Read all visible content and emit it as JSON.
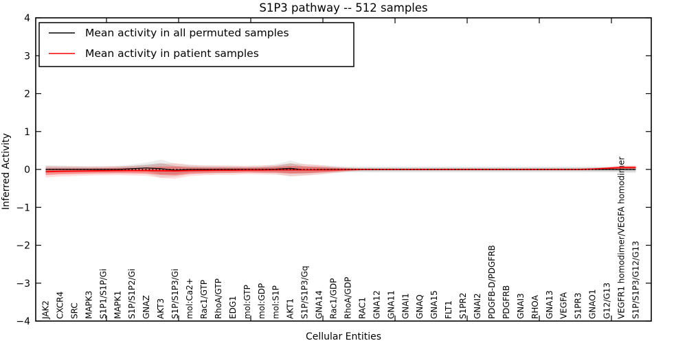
{
  "title": "S1P3 pathway -- 512 samples",
  "legend": {
    "position": "upper left",
    "items": [
      {
        "label": "Mean activity in all permuted samples",
        "color": "#000000"
      },
      {
        "label": "Mean activity in patient samples",
        "color": "#ff0000"
      }
    ]
  },
  "axes": {
    "xlabel": "Cellular Entities",
    "ylabel": "Inferred Activity",
    "ytick_labels": [
      "4",
      "3",
      "2",
      "1",
      "0",
      "−1",
      "−2",
      "−3",
      "−4"
    ]
  },
  "chart_data": {
    "type": "line",
    "title": "S1P3 pathway -- 512 samples",
    "xlabel": "Cellular Entities",
    "ylabel": "Inferred Activity",
    "ylim": [
      -4,
      4
    ],
    "yticks": [
      -4,
      -3,
      -2,
      -1,
      0,
      1,
      2,
      3,
      4
    ],
    "grid": false,
    "legend_position": "upper left",
    "background_color": "#ffffff",
    "frame_color": "#000000",
    "categories": [
      "JAK2",
      "CXCR4",
      "SRC",
      "MAPK3",
      "S1P1/S1P/Gi",
      "MAPK1",
      "S1P/S1P2/Gi",
      "GNAZ",
      "AKT3",
      "S1P/S1P3/Gi",
      "mol:Ca2+",
      "Rac1/GTP",
      "RhoA/GTP",
      "EDG1",
      "mol:GTP",
      "mol:GDP",
      "mol:S1P",
      "AKT1",
      "S1P/S1P3/Gq",
      "GNA14",
      "Rac1/GDP",
      "RhoA/GDP",
      "RAC1",
      "GNA12",
      "GNA11",
      "GNAI1",
      "GNAQ",
      "GNA15",
      "FLT1",
      "S1PR2",
      "GNAI2",
      "PDGFB-D/PDGFRB",
      "PDGFRB",
      "GNAI3",
      "RHOA",
      "GNA13",
      "VEGFA",
      "S1PR3",
      "GNAO1",
      "G12/G13",
      "VEGFR1 homodimer/VEGFA homodimer",
      "S1P/S1P3/G12/G13"
    ],
    "series": [
      {
        "name": "Mean activity in all permuted samples",
        "color": "#000000",
        "line_style": "solid",
        "band_color": "#808080",
        "values": [
          0,
          0,
          0,
          0,
          0,
          0,
          0.02,
          0.04,
          0.02,
          -0.02,
          0,
          0,
          0,
          0,
          0,
          0,
          0.01,
          0.03,
          -0.01,
          0,
          0,
          0,
          0,
          0,
          0,
          0,
          0,
          0,
          0,
          0,
          0,
          0,
          0,
          0,
          0,
          0,
          0,
          0,
          0,
          0,
          0,
          0
        ],
        "band": [
          0.07,
          0.065,
          0.06,
          0.055,
          0.055,
          0.06,
          0.07,
          0.09,
          0.15,
          0.11,
          0.08,
          0.07,
          0.065,
          0.06,
          0.055,
          0.06,
          0.08,
          0.13,
          0.09,
          0.07,
          0.06,
          0.05,
          0.05,
          0.05,
          0.05,
          0.05,
          0.05,
          0.05,
          0.05,
          0.05,
          0.05,
          0.05,
          0.05,
          0.05,
          0.05,
          0.05,
          0.05,
          0.05,
          0.05,
          0.05,
          0.055,
          0.06
        ]
      },
      {
        "name": "Mean activity in patient samples",
        "color": "#ff0000",
        "line_style": "solid",
        "band_color": "#ff0000",
        "values": [
          -0.06,
          -0.05,
          -0.045,
          -0.04,
          -0.035,
          -0.03,
          -0.03,
          -0.03,
          -0.035,
          -0.04,
          -0.03,
          -0.025,
          -0.02,
          -0.02,
          -0.015,
          -0.015,
          -0.01,
          -0.01,
          -0.01,
          -0.01,
          -0.01,
          -0.005,
          0,
          0,
          0,
          0,
          0,
          0,
          0,
          0,
          0,
          0,
          0,
          0,
          0,
          0,
          0,
          0,
          0.01,
          0.03,
          0.05,
          0.05
        ],
        "band": [
          0.09,
          0.08,
          0.075,
          0.07,
          0.07,
          0.07,
          0.075,
          0.08,
          0.11,
          0.12,
          0.085,
          0.075,
          0.07,
          0.07,
          0.065,
          0.07,
          0.075,
          0.1,
          0.09,
          0.075,
          0.05,
          0.03,
          0.015,
          0.012,
          0.012,
          0.012,
          0.012,
          0.012,
          0.012,
          0.012,
          0.012,
          0.012,
          0.012,
          0.012,
          0.012,
          0.012,
          0.012,
          0.012,
          0.015,
          0.02,
          0.03,
          0.03
        ]
      }
    ],
    "zero_reference_line": {
      "y": 0,
      "style": "dotted",
      "color": "#000000"
    }
  }
}
